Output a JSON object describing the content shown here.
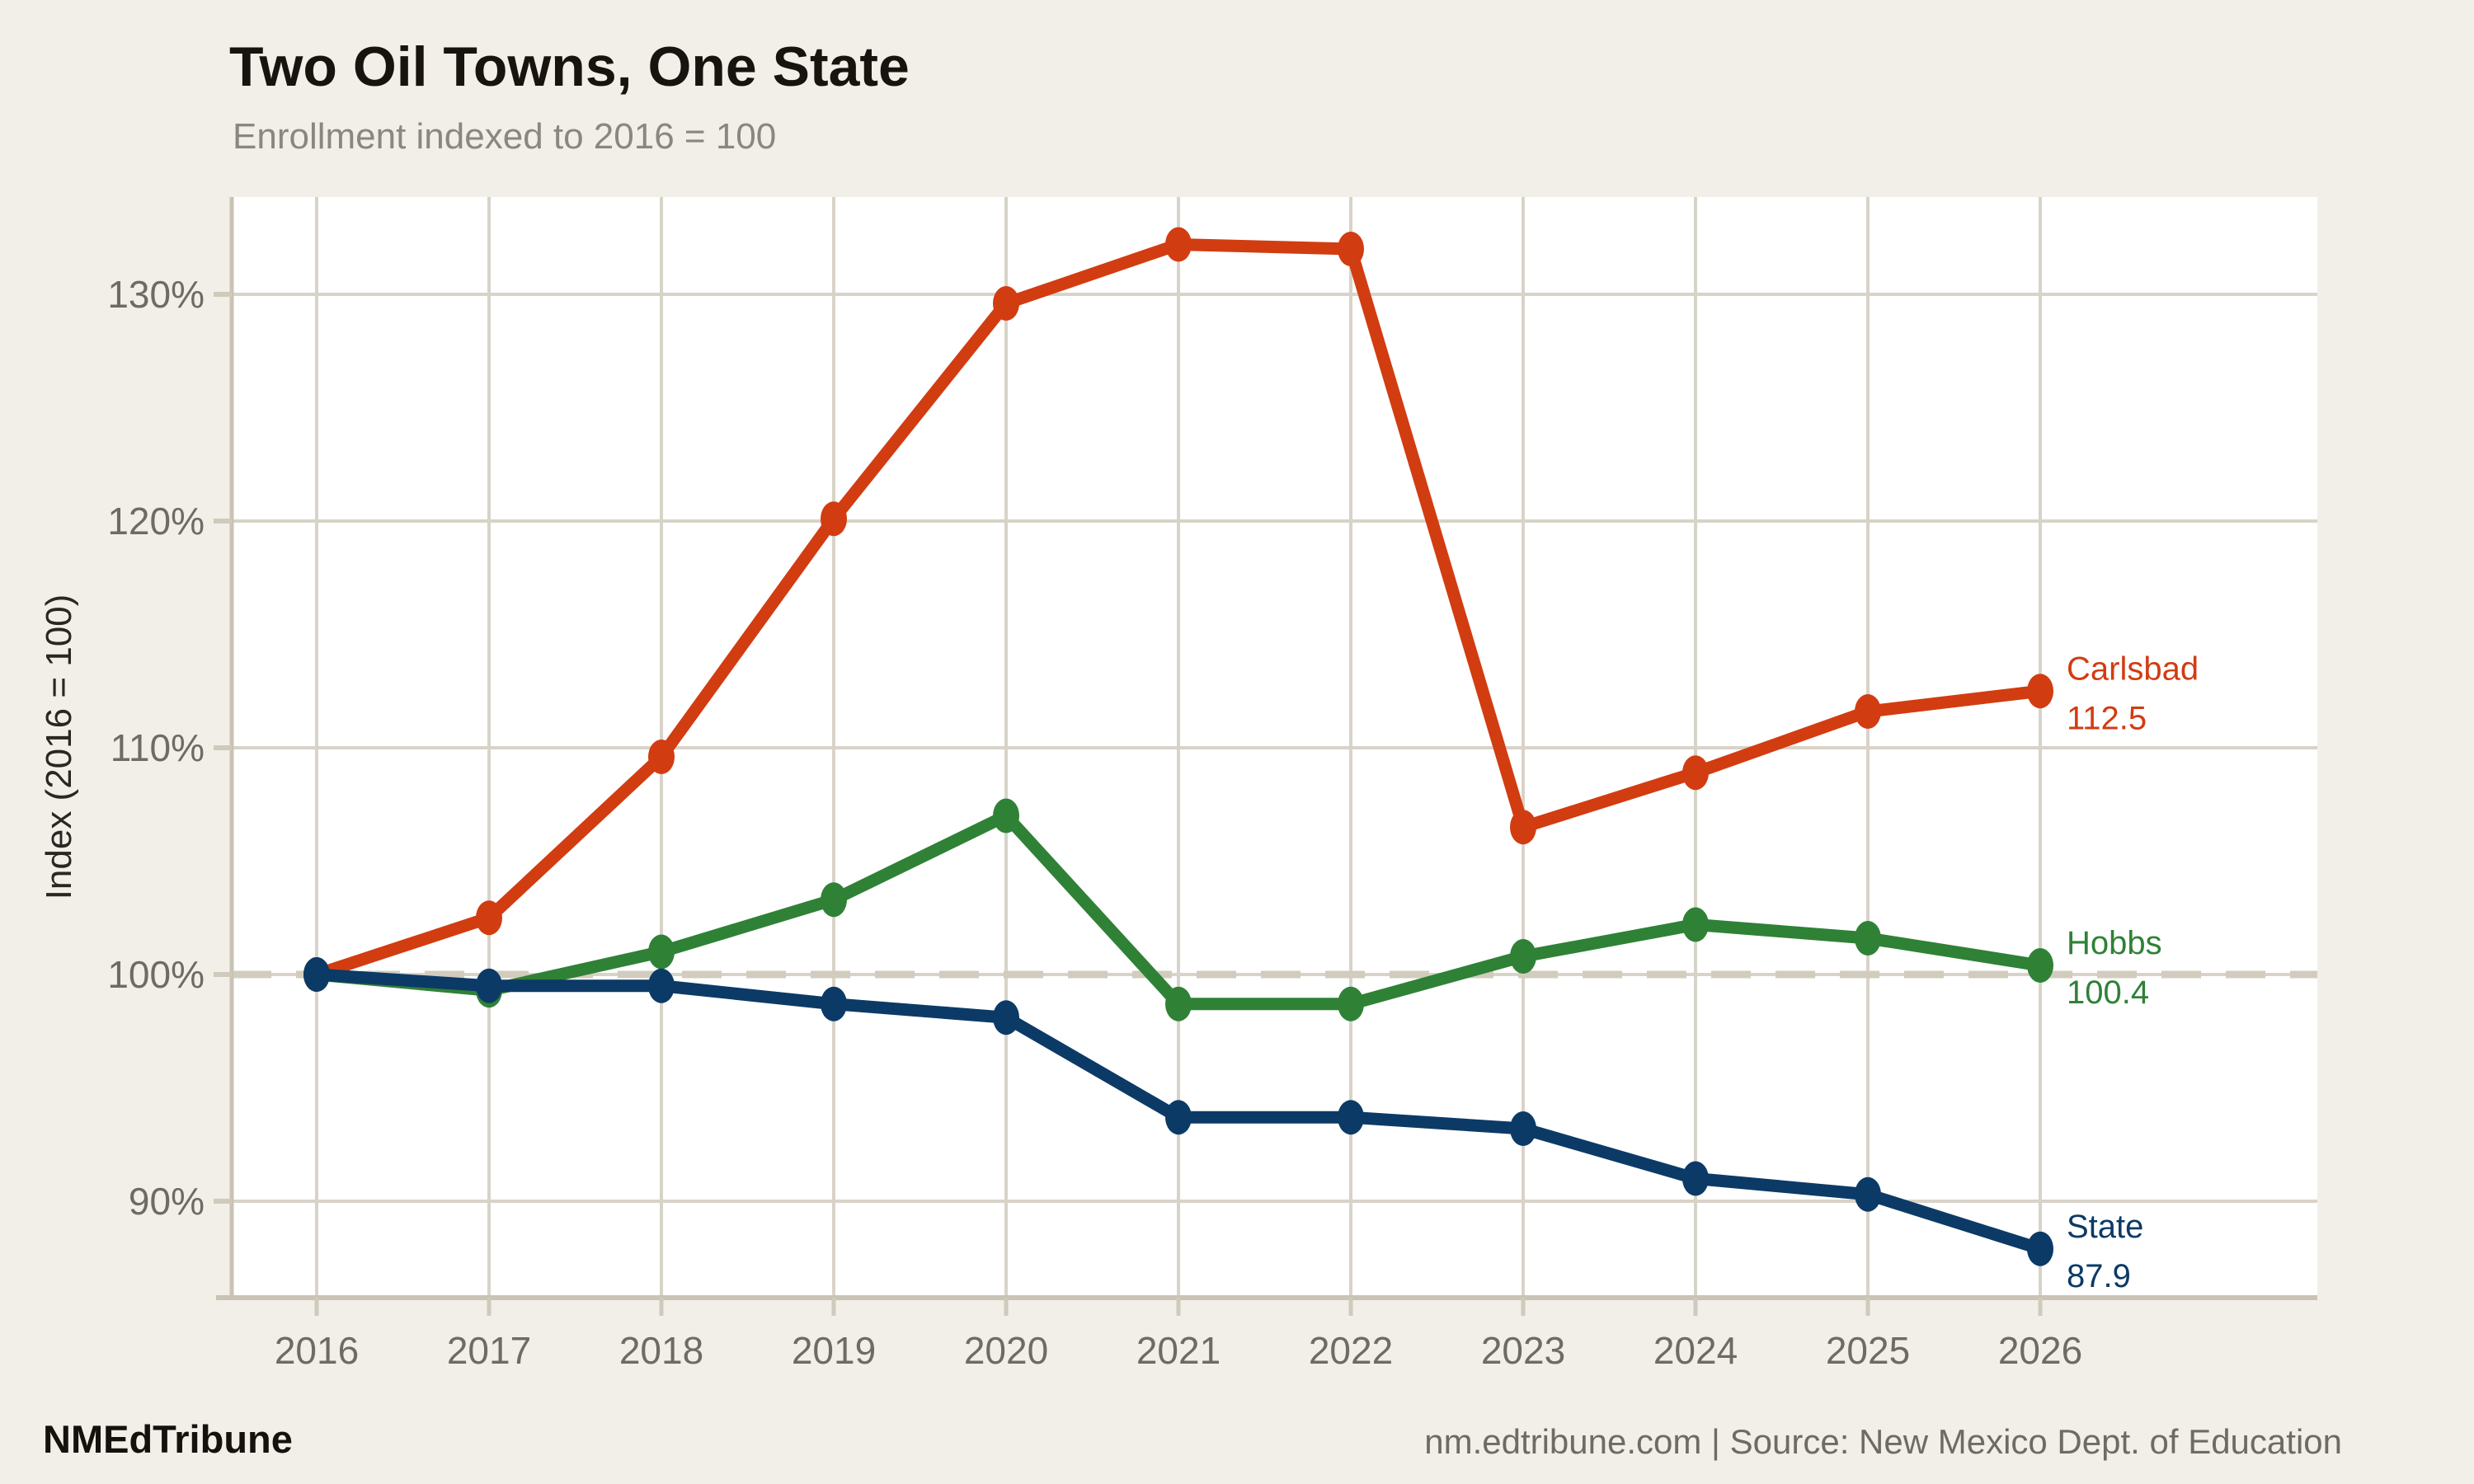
{
  "header": {
    "title": "Two Oil Towns, One State",
    "subtitle": "Enrollment indexed to 2016 = 100"
  },
  "footer": {
    "brand": "NMEdTribune",
    "source": "nm.edtribune.com | Source: New Mexico Dept. of Education"
  },
  "colors": {
    "background": "#f2efe9",
    "plot_background": "#ffffff",
    "grid": "#d8d3c8",
    "axis": "#c9c3b6",
    "tick": "#d0cabc",
    "reference_line": "#d2ccbe",
    "tick_text": "#6f6b63",
    "title_text": "#17140f",
    "subtitle_text": "#8b867e",
    "carlsbad": "#d23c11",
    "hobbs": "#2f8136",
    "state": "#0c3a66"
  },
  "chart_data": {
    "type": "line",
    "title": "Two Oil Towns, One State",
    "subtitle": "Enrollment indexed to 2016 = 100",
    "ylabel": "Index (2016 = 100)",
    "xlabel": "",
    "categories": [
      "2016",
      "2017",
      "2018",
      "2019",
      "2020",
      "2021",
      "2022",
      "2023",
      "2024",
      "2025",
      "2026"
    ],
    "series": [
      {
        "name": "Carlsbad",
        "color": "#d23c11",
        "values": [
          100,
          102.5,
          109.6,
          120.1,
          129.6,
          132.2,
          132.0,
          106.5,
          108.9,
          111.6,
          112.5
        ],
        "end_label": "112.5"
      },
      {
        "name": "Hobbs",
        "color": "#2f8136",
        "values": [
          100,
          99.3,
          101.0,
          103.3,
          107.0,
          98.7,
          98.7,
          100.8,
          102.2,
          101.6,
          100.4
        ],
        "end_label": "100.4"
      },
      {
        "name": "State",
        "color": "#0c3a66",
        "values": [
          100,
          99.5,
          99.5,
          98.7,
          98.1,
          93.7,
          93.7,
          93.2,
          91.0,
          90.3,
          87.9
        ],
        "end_label": "87.9"
      }
    ],
    "y_ticks": [
      {
        "value": 90,
        "label": "90%"
      },
      {
        "value": 100,
        "label": "100%"
      },
      {
        "value": 110,
        "label": "110%"
      },
      {
        "value": 120,
        "label": "120%"
      },
      {
        "value": 130,
        "label": "130%"
      }
    ],
    "reference_line": {
      "value": 100,
      "style": "dashed"
    },
    "ylim": [
      85.7,
      134.3
    ],
    "grid": true,
    "legend_position": "line-end-labels"
  }
}
